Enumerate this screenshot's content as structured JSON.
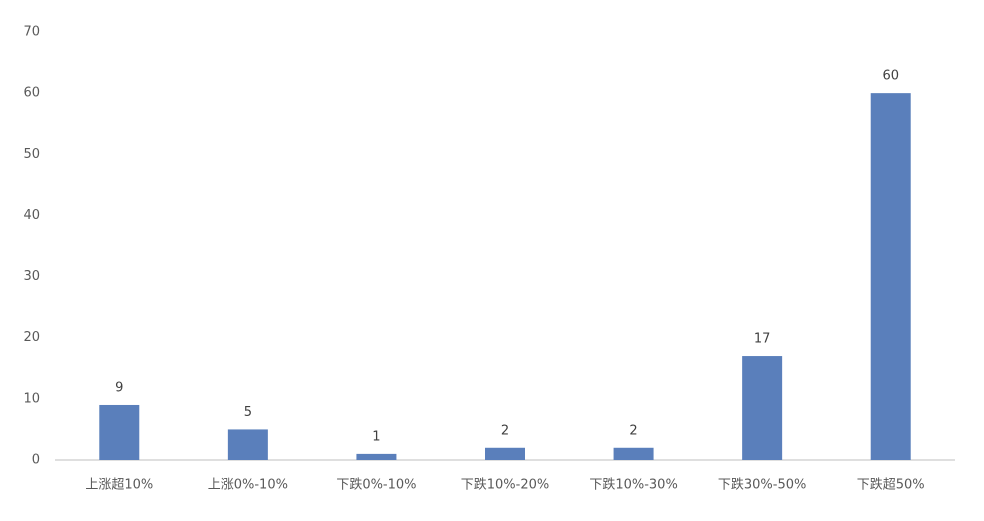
{
  "chart_data": {
    "type": "bar",
    "categories": [
      "上涨超10%",
      "上涨0%-10%",
      "下跌0%-10%",
      "下跌10%-20%",
      "下跌10%-30%",
      "下跌30%-50%",
      "下跌超50%"
    ],
    "values": [
      9,
      5,
      1,
      2,
      2,
      17,
      60
    ],
    "color": "#5a7fbb",
    "ylim": [
      0,
      70
    ],
    "yticks": [
      0,
      10,
      20,
      30,
      40,
      50,
      60,
      70
    ],
    "grid": false
  }
}
